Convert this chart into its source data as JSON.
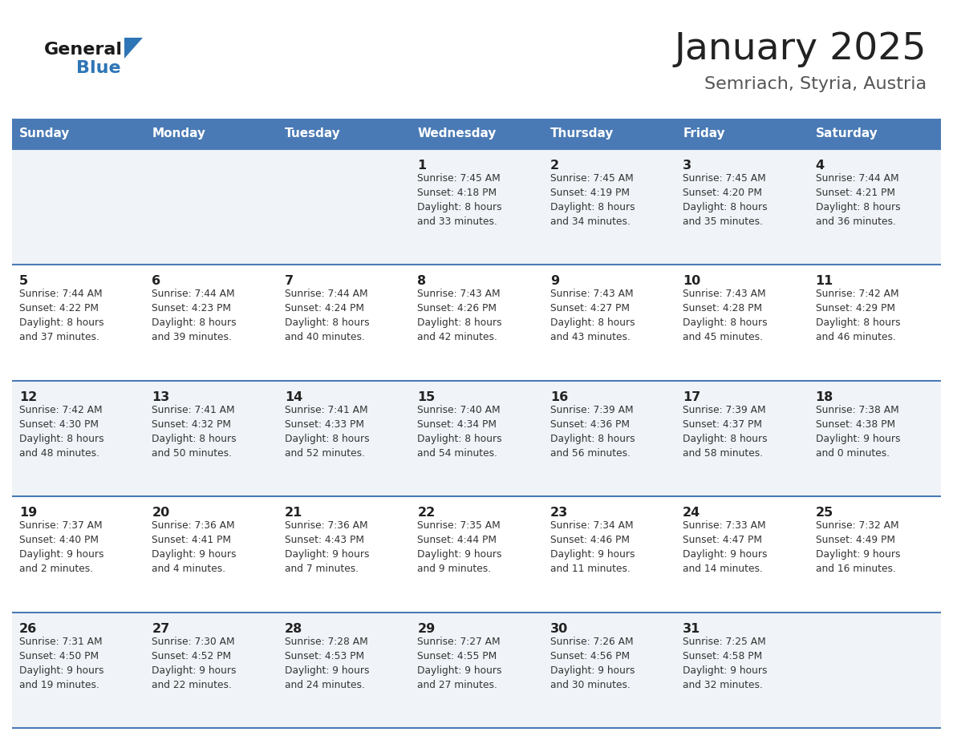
{
  "title": "January 2025",
  "subtitle": "Semriach, Styria, Austria",
  "header_bg": "#4a7ab5",
  "header_text_color": "#ffffff",
  "weekdays": [
    "Sunday",
    "Monday",
    "Tuesday",
    "Wednesday",
    "Thursday",
    "Friday",
    "Saturday"
  ],
  "row_bg_even": "#f0f4f8",
  "row_bg_odd": "#ffffff",
  "cell_border_color": "#4a7ab5",
  "day_number_color": "#222222",
  "info_text_color": "#333333",
  "title_color": "#222222",
  "subtitle_color": "#555555",
  "logo_general_color": "#1a1a1a",
  "logo_blue_color": "#2e75b6",
  "calendar": [
    [
      {
        "day": null,
        "info": ""
      },
      {
        "day": null,
        "info": ""
      },
      {
        "day": null,
        "info": ""
      },
      {
        "day": 1,
        "info": "Sunrise: 7:45 AM\nSunset: 4:18 PM\nDaylight: 8 hours\nand 33 minutes."
      },
      {
        "day": 2,
        "info": "Sunrise: 7:45 AM\nSunset: 4:19 PM\nDaylight: 8 hours\nand 34 minutes."
      },
      {
        "day": 3,
        "info": "Sunrise: 7:45 AM\nSunset: 4:20 PM\nDaylight: 8 hours\nand 35 minutes."
      },
      {
        "day": 4,
        "info": "Sunrise: 7:44 AM\nSunset: 4:21 PM\nDaylight: 8 hours\nand 36 minutes."
      }
    ],
    [
      {
        "day": 5,
        "info": "Sunrise: 7:44 AM\nSunset: 4:22 PM\nDaylight: 8 hours\nand 37 minutes."
      },
      {
        "day": 6,
        "info": "Sunrise: 7:44 AM\nSunset: 4:23 PM\nDaylight: 8 hours\nand 39 minutes."
      },
      {
        "day": 7,
        "info": "Sunrise: 7:44 AM\nSunset: 4:24 PM\nDaylight: 8 hours\nand 40 minutes."
      },
      {
        "day": 8,
        "info": "Sunrise: 7:43 AM\nSunset: 4:26 PM\nDaylight: 8 hours\nand 42 minutes."
      },
      {
        "day": 9,
        "info": "Sunrise: 7:43 AM\nSunset: 4:27 PM\nDaylight: 8 hours\nand 43 minutes."
      },
      {
        "day": 10,
        "info": "Sunrise: 7:43 AM\nSunset: 4:28 PM\nDaylight: 8 hours\nand 45 minutes."
      },
      {
        "day": 11,
        "info": "Sunrise: 7:42 AM\nSunset: 4:29 PM\nDaylight: 8 hours\nand 46 minutes."
      }
    ],
    [
      {
        "day": 12,
        "info": "Sunrise: 7:42 AM\nSunset: 4:30 PM\nDaylight: 8 hours\nand 48 minutes."
      },
      {
        "day": 13,
        "info": "Sunrise: 7:41 AM\nSunset: 4:32 PM\nDaylight: 8 hours\nand 50 minutes."
      },
      {
        "day": 14,
        "info": "Sunrise: 7:41 AM\nSunset: 4:33 PM\nDaylight: 8 hours\nand 52 minutes."
      },
      {
        "day": 15,
        "info": "Sunrise: 7:40 AM\nSunset: 4:34 PM\nDaylight: 8 hours\nand 54 minutes."
      },
      {
        "day": 16,
        "info": "Sunrise: 7:39 AM\nSunset: 4:36 PM\nDaylight: 8 hours\nand 56 minutes."
      },
      {
        "day": 17,
        "info": "Sunrise: 7:39 AM\nSunset: 4:37 PM\nDaylight: 8 hours\nand 58 minutes."
      },
      {
        "day": 18,
        "info": "Sunrise: 7:38 AM\nSunset: 4:38 PM\nDaylight: 9 hours\nand 0 minutes."
      }
    ],
    [
      {
        "day": 19,
        "info": "Sunrise: 7:37 AM\nSunset: 4:40 PM\nDaylight: 9 hours\nand 2 minutes."
      },
      {
        "day": 20,
        "info": "Sunrise: 7:36 AM\nSunset: 4:41 PM\nDaylight: 9 hours\nand 4 minutes."
      },
      {
        "day": 21,
        "info": "Sunrise: 7:36 AM\nSunset: 4:43 PM\nDaylight: 9 hours\nand 7 minutes."
      },
      {
        "day": 22,
        "info": "Sunrise: 7:35 AM\nSunset: 4:44 PM\nDaylight: 9 hours\nand 9 minutes."
      },
      {
        "day": 23,
        "info": "Sunrise: 7:34 AM\nSunset: 4:46 PM\nDaylight: 9 hours\nand 11 minutes."
      },
      {
        "day": 24,
        "info": "Sunrise: 7:33 AM\nSunset: 4:47 PM\nDaylight: 9 hours\nand 14 minutes."
      },
      {
        "day": 25,
        "info": "Sunrise: 7:32 AM\nSunset: 4:49 PM\nDaylight: 9 hours\nand 16 minutes."
      }
    ],
    [
      {
        "day": 26,
        "info": "Sunrise: 7:31 AM\nSunset: 4:50 PM\nDaylight: 9 hours\nand 19 minutes."
      },
      {
        "day": 27,
        "info": "Sunrise: 7:30 AM\nSunset: 4:52 PM\nDaylight: 9 hours\nand 22 minutes."
      },
      {
        "day": 28,
        "info": "Sunrise: 7:28 AM\nSunset: 4:53 PM\nDaylight: 9 hours\nand 24 minutes."
      },
      {
        "day": 29,
        "info": "Sunrise: 7:27 AM\nSunset: 4:55 PM\nDaylight: 9 hours\nand 27 minutes."
      },
      {
        "day": 30,
        "info": "Sunrise: 7:26 AM\nSunset: 4:56 PM\nDaylight: 9 hours\nand 30 minutes."
      },
      {
        "day": 31,
        "info": "Sunrise: 7:25 AM\nSunset: 4:58 PM\nDaylight: 9 hours\nand 32 minutes."
      },
      {
        "day": null,
        "info": ""
      }
    ]
  ]
}
